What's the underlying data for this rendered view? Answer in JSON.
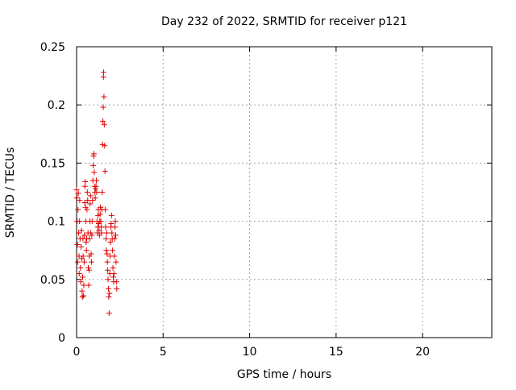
{
  "chart_data": {
    "type": "scatter",
    "title": "Day 232 of 2022, SRMTID for receiver p121",
    "xlabel": "GPS time / hours",
    "ylabel": "SRMTID / TECUs",
    "xlim": [
      0,
      24
    ],
    "ylim": [
      0,
      0.25
    ],
    "xticks": [
      0,
      5,
      10,
      15,
      20
    ],
    "xtick_labels": [
      "0",
      "5",
      "10",
      "15",
      "20"
    ],
    "yticks": [
      0,
      0.05,
      0.1,
      0.15,
      0.2,
      0.25
    ],
    "ytick_labels": [
      "0",
      "0.05",
      "0.1",
      "0.15",
      "0.2",
      "0.25"
    ],
    "grid": true,
    "marker": "+",
    "marker_color": "#e00000",
    "series": [
      {
        "points": [
          [
            0.0,
            0.127
          ],
          [
            0.02,
            0.12
          ],
          [
            0.03,
            0.1
          ],
          [
            0.05,
            0.08
          ],
          [
            0.06,
            0.065
          ],
          [
            0.08,
            0.11
          ],
          [
            0.1,
            0.124
          ],
          [
            0.12,
            0.09
          ],
          [
            0.14,
            0.07
          ],
          [
            0.15,
            0.055
          ],
          [
            0.17,
            0.1
          ],
          [
            0.18,
            0.118
          ],
          [
            0.2,
            0.085
          ],
          [
            0.22,
            0.06
          ],
          [
            0.24,
            0.048
          ],
          [
            0.26,
            0.078
          ],
          [
            0.28,
            0.092
          ],
          [
            0.3,
            0.068
          ],
          [
            0.32,
            0.04
          ],
          [
            0.34,
            0.035
          ],
          [
            0.35,
            0.052
          ],
          [
            0.37,
            0.085
          ],
          [
            0.38,
            0.07
          ],
          [
            0.4,
            0.036
          ],
          [
            0.42,
            0.045
          ],
          [
            0.44,
            0.065
          ],
          [
            0.45,
            0.088
          ],
          [
            0.47,
            0.116
          ],
          [
            0.48,
            0.13
          ],
          [
            0.5,
            0.134
          ],
          [
            0.52,
            0.112
          ],
          [
            0.54,
            0.1
          ],
          [
            0.55,
            0.082
          ],
          [
            0.57,
            0.075
          ],
          [
            0.58,
            0.085
          ],
          [
            0.6,
            0.11
          ],
          [
            0.62,
            0.125
          ],
          [
            0.64,
            0.118
          ],
          [
            0.66,
            0.09
          ],
          [
            0.68,
            0.06
          ],
          [
            0.7,
            0.045
          ],
          [
            0.72,
            0.058
          ],
          [
            0.74,
            0.07
          ],
          [
            0.75,
            0.085
          ],
          [
            0.77,
            0.1
          ],
          [
            0.78,
            0.115
          ],
          [
            0.8,
            0.122
          ],
          [
            0.82,
            0.09
          ],
          [
            0.84,
            0.072
          ],
          [
            0.86,
            0.065
          ],
          [
            0.88,
            0.088
          ],
          [
            0.9,
            0.1
          ],
          [
            0.92,
            0.118
          ],
          [
            0.94,
            0.135
          ],
          [
            0.96,
            0.148
          ],
          [
            0.98,
            0.156
          ],
          [
            1.0,
            0.158
          ],
          [
            1.02,
            0.142
          ],
          [
            1.04,
            0.13
          ],
          [
            1.06,
            0.125
          ],
          [
            1.08,
            0.12
          ],
          [
            1.1,
            0.128
          ],
          [
            1.12,
            0.13
          ],
          [
            1.14,
            0.135
          ],
          [
            1.16,
            0.125
          ],
          [
            1.18,
            0.1
          ],
          [
            1.2,
            0.09
          ],
          [
            1.22,
            0.095
          ],
          [
            1.24,
            0.105
          ],
          [
            1.26,
            0.11
          ],
          [
            1.28,
            0.098
          ],
          [
            1.3,
            0.092
          ],
          [
            1.32,
            0.088
          ],
          [
            1.34,
            0.1
          ],
          [
            1.36,
            0.106
          ],
          [
            1.38,
            0.112
          ],
          [
            1.4,
            0.1
          ],
          [
            1.42,
            0.095
          ],
          [
            1.44,
            0.09
          ],
          [
            1.46,
            0.11
          ],
          [
            1.48,
            0.125
          ],
          [
            1.5,
            0.166
          ],
          [
            1.52,
            0.186
          ],
          [
            1.54,
            0.198
          ],
          [
            1.55,
            0.224
          ],
          [
            1.56,
            0.228
          ],
          [
            1.58,
            0.207
          ],
          [
            1.6,
            0.183
          ],
          [
            1.62,
            0.165
          ],
          [
            1.64,
            0.143
          ],
          [
            1.66,
            0.11
          ],
          [
            1.68,
            0.095
          ],
          [
            1.7,
            0.085
          ],
          [
            1.72,
            0.075
          ],
          [
            1.74,
            0.09
          ],
          [
            1.76,
            0.072
          ],
          [
            1.78,
            0.065
          ],
          [
            1.8,
            0.058
          ],
          [
            1.82,
            0.05
          ],
          [
            1.84,
            0.042
          ],
          [
            1.86,
            0.035
          ],
          [
            1.88,
            0.021
          ],
          [
            1.9,
            0.038
          ],
          [
            1.92,
            0.055
          ],
          [
            1.94,
            0.07
          ],
          [
            1.96,
            0.082
          ],
          [
            1.98,
            0.095
          ],
          [
            2.0,
            0.098
          ],
          [
            2.02,
            0.105
          ],
          [
            2.04,
            0.09
          ],
          [
            2.06,
            0.085
          ],
          [
            2.08,
            0.075
          ],
          [
            2.1,
            0.06
          ],
          [
            2.12,
            0.052
          ],
          [
            2.14,
            0.048
          ],
          [
            2.16,
            0.055
          ],
          [
            2.18,
            0.07
          ],
          [
            2.2,
            0.085
          ],
          [
            2.22,
            0.095
          ],
          [
            2.24,
            0.1
          ],
          [
            2.26,
            0.088
          ],
          [
            2.28,
            0.065
          ],
          [
            2.3,
            0.048
          ],
          [
            2.32,
            0.042
          ]
        ]
      }
    ]
  }
}
